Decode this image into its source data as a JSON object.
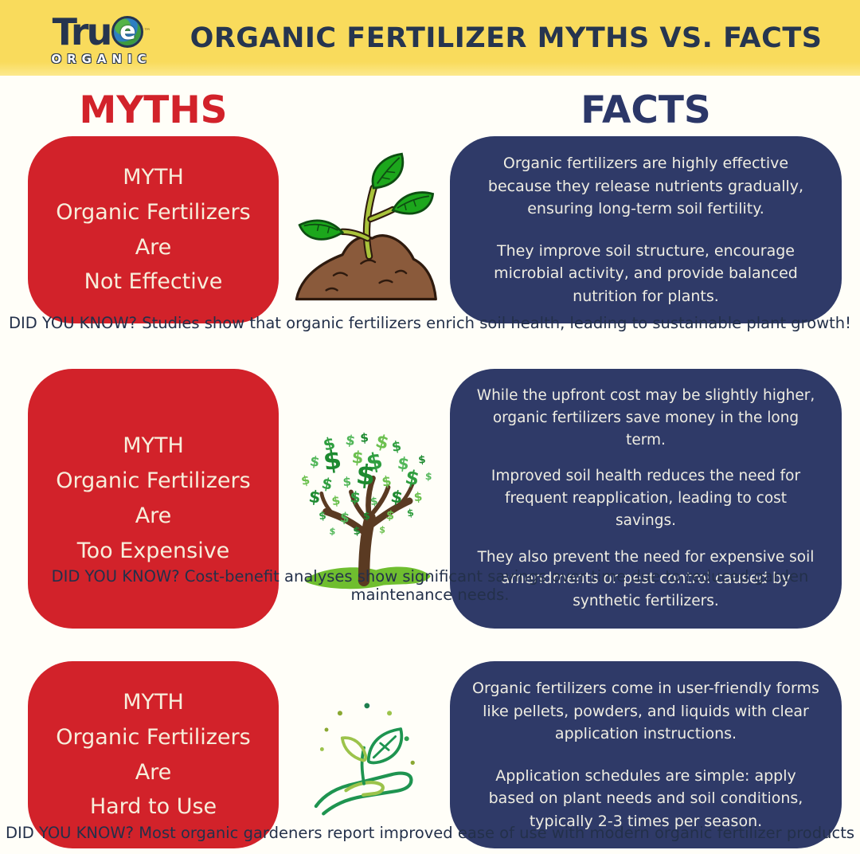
{
  "colors": {
    "background": "#FFFEF8",
    "banner_yellow": "#F9DB5C",
    "title_navy": "#26354F",
    "myth_red": "#D2222A",
    "facts_heading_navy": "#2B3768",
    "fact_box_navy": "#2F3A68",
    "myth_text_cream": "#F7EEDB",
    "did_you_know_navy": "#23304A"
  },
  "header": {
    "logo_word": "Tru",
    "logo_globe_letter": "e",
    "logo_tm": "™",
    "logo_subword": "ORGANIC",
    "title": "ORGANIC FERTILIZER MYTHS VS. FACTS"
  },
  "column_headings": {
    "myths": "MYTHS",
    "facts": "FACTS"
  },
  "icons": {
    "dollar_glyph": "$",
    "row1": "seedling-in-soil-mound",
    "row2": "money-tree-with-dollar-signs",
    "row3": "hand-holding-sprout-line-art"
  },
  "rows": [
    {
      "myth_label": "MYTH",
      "myth_line1": "Organic Fertilizers Are",
      "myth_line2": "Not Effective",
      "facts": [
        "Organic fertilizers are highly effective because they release nutrients gradually, ensuring long-term soil fertility.",
        "They improve soil structure, encourage microbial activity, and provide balanced nutrition for plants."
      ],
      "did_you_know": "DID YOU KNOW? Studies show that organic fertilizers enrich soil health, leading to sustainable plant growth!"
    },
    {
      "myth_label": "MYTH",
      "myth_line1": "Organic Fertilizers Are",
      "myth_line2": "Too Expensive",
      "facts": [
        "While the upfront cost may be slightly higher, organic fertilizers save money in the long term.",
        "Improved soil health reduces the need for frequent reapplication, leading to cost savings.",
        "They also prevent the need for expensive soil amendments or pest control caused by synthetic fertilizers."
      ],
      "did_you_know": "DID YOU KNOW? Cost-benefit analyses show significant savings over time due to reduced garden maintenance needs."
    },
    {
      "myth_label": "MYTH",
      "myth_line1": "Organic Fertilizers Are",
      "myth_line2": "Hard to Use",
      "facts": [
        "Organic fertilizers come in user-friendly forms like pellets, powders, and liquids with clear application instructions.",
        "Application schedules are simple: apply based on plant needs and soil conditions, typically 2-3 times per season."
      ],
      "did_you_know": "DID YOU KNOW? Most organic gardeners report improved ease of use with modern organic fertilizer products"
    }
  ]
}
